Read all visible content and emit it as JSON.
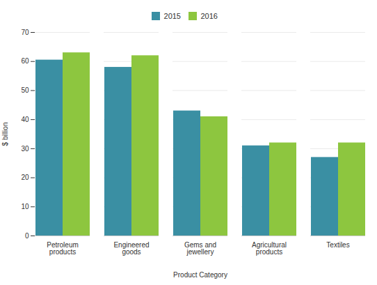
{
  "chart_data": {
    "type": "bar",
    "categories": [
      "Petroleum\nproducts",
      "Engineered\ngoods",
      "Gems and\njewellery",
      "Agricultural\nproducts",
      "Textiles"
    ],
    "series": [
      {
        "name": "2015",
        "color": "#3a8fa3",
        "values": [
          60.5,
          58,
          43,
          31,
          27
        ]
      },
      {
        "name": "2016",
        "color": "#8dc63f",
        "values": [
          63,
          62,
          41,
          32,
          32
        ]
      }
    ],
    "ylabel": "$ billion",
    "xlabel": "Product Category",
    "ylim": [
      0,
      70
    ],
    "yticks": [
      0,
      10,
      20,
      30,
      40,
      50,
      60,
      70
    ],
    "grid": true,
    "legend": "top"
  }
}
